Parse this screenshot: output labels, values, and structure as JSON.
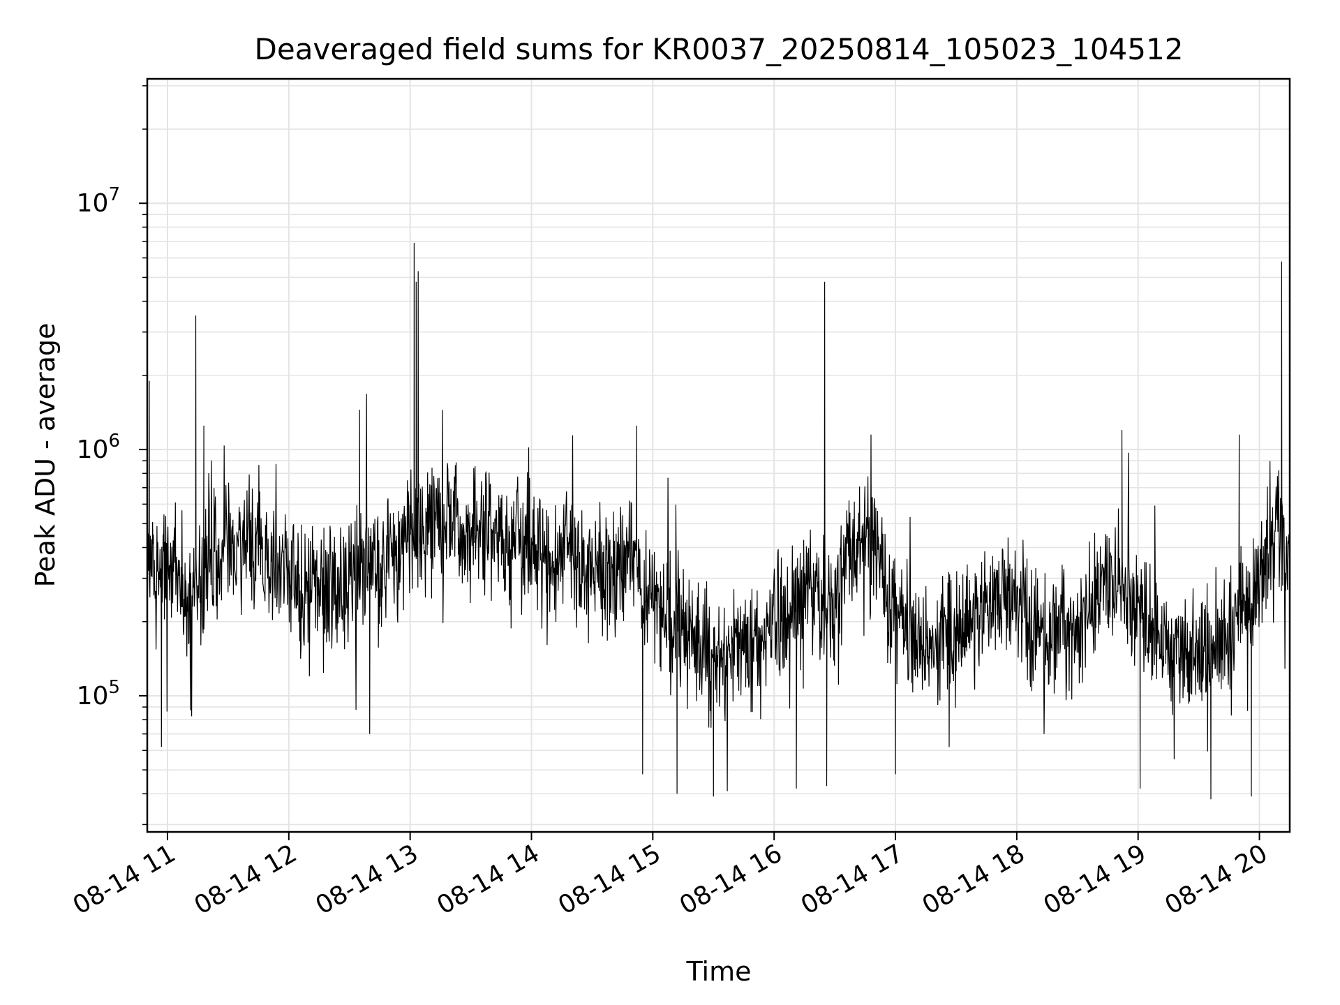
{
  "chart_data": {
    "type": "line",
    "title": "Deaveraged field sums for KR0037_20250814_105023_104512",
    "xlabel": "Time",
    "ylabel": "Peak ADU - average",
    "yscale": "log",
    "ylim": [
      28000,
      32000000
    ],
    "xlim": [
      "2025-08-14 10:50",
      "2025-08-14 20:15"
    ],
    "x_ticks": [
      "08-14 11",
      "08-14 12",
      "08-14 13",
      "08-14 14",
      "08-14 15",
      "08-14 16",
      "08-14 17",
      "08-14 18",
      "08-14 19",
      "08-14 20"
    ],
    "y_ticks": [
      {
        "base": "10",
        "exp": "5",
        "value": 100000
      },
      {
        "base": "10",
        "exp": "6",
        "value": 1000000
      },
      {
        "base": "10",
        "exp": "7",
        "value": 10000000
      }
    ],
    "grid": true,
    "legend": "none",
    "line_color": "#000000",
    "series": [
      {
        "x": [
          "2025-08-14 10:50",
          "2025-08-14 11:00",
          "2025-08-14 11:10",
          "2025-08-14 11:20",
          "2025-08-14 11:30",
          "2025-08-14 11:40",
          "2025-08-14 11:50",
          "2025-08-14 12:00",
          "2025-08-14 12:10",
          "2025-08-14 12:20",
          "2025-08-14 12:30",
          "2025-08-14 12:40",
          "2025-08-14 12:50",
          "2025-08-14 13:00",
          "2025-08-14 13:10",
          "2025-08-14 13:20",
          "2025-08-14 13:30",
          "2025-08-14 13:40",
          "2025-08-14 13:50",
          "2025-08-14 14:00",
          "2025-08-14 14:10",
          "2025-08-14 14:20",
          "2025-08-14 14:30",
          "2025-08-14 14:40",
          "2025-08-14 14:50",
          "2025-08-14 15:00",
          "2025-08-14 15:10",
          "2025-08-14 15:20",
          "2025-08-14 15:30",
          "2025-08-14 15:40",
          "2025-08-14 15:50",
          "2025-08-14 16:00",
          "2025-08-14 16:10",
          "2025-08-14 16:20",
          "2025-08-14 16:30",
          "2025-08-14 16:40",
          "2025-08-14 16:50",
          "2025-08-14 17:00",
          "2025-08-14 17:10",
          "2025-08-14 17:20",
          "2025-08-14 17:30",
          "2025-08-14 17:40",
          "2025-08-14 17:50",
          "2025-08-14 18:00",
          "2025-08-14 18:10",
          "2025-08-14 18:20",
          "2025-08-14 18:30",
          "2025-08-14 18:40",
          "2025-08-14 18:50",
          "2025-08-14 19:00",
          "2025-08-14 19:10",
          "2025-08-14 19:20",
          "2025-08-14 19:30",
          "2025-08-14 19:40",
          "2025-08-14 19:50",
          "2025-08-14 20:00",
          "2025-08-14 20:10",
          "2025-08-14 20:15"
        ],
        "y": [
          350000,
          300000,
          250000,
          320000,
          380000,
          400000,
          350000,
          330000,
          250000,
          280000,
          300000,
          330000,
          380000,
          430000,
          480000,
          500000,
          420000,
          400000,
          420000,
          380000,
          350000,
          370000,
          300000,
          330000,
          360000,
          240000,
          200000,
          160000,
          140000,
          150000,
          160000,
          200000,
          230000,
          250000,
          240000,
          380000,
          450000,
          200000,
          170000,
          160000,
          180000,
          220000,
          250000,
          230000,
          200000,
          170000,
          200000,
          260000,
          280000,
          220000,
          170000,
          150000,
          140000,
          170000,
          220000,
          300000,
          450000,
          400000
        ]
      }
    ],
    "spikes": [
      {
        "x": "2025-08-14 10:51",
        "y": 1900000
      },
      {
        "x": "2025-08-14 11:14",
        "y": 3500000
      },
      {
        "x": "2025-08-14 11:18",
        "y": 1250000
      },
      {
        "x": "2025-08-14 12:35",
        "y": 1450000
      },
      {
        "x": "2025-08-14 13:02",
        "y": 6900000
      },
      {
        "x": "2025-08-14 13:03",
        "y": 4800000
      },
      {
        "x": "2025-08-14 13:04",
        "y": 5300000
      },
      {
        "x": "2025-08-14 14:52",
        "y": 1250000
      },
      {
        "x": "2025-08-14 16:25",
        "y": 4800000
      },
      {
        "x": "2025-08-14 18:52",
        "y": 1200000
      },
      {
        "x": "2025-08-14 19:50",
        "y": 1150000
      },
      {
        "x": "2025-08-14 20:11",
        "y": 5800000
      }
    ],
    "dips": [
      {
        "x": "2025-08-14 10:57",
        "y": 62000
      },
      {
        "x": "2025-08-14 12:40",
        "y": 70000
      },
      {
        "x": "2025-08-14 14:55",
        "y": 48000
      },
      {
        "x": "2025-08-14 15:12",
        "y": 40000
      },
      {
        "x": "2025-08-14 15:30",
        "y": 39000
      },
      {
        "x": "2025-08-14 16:11",
        "y": 42000
      },
      {
        "x": "2025-08-14 16:26",
        "y": 43000
      },
      {
        "x": "2025-08-14 17:00",
        "y": 48000
      },
      {
        "x": "2025-08-14 19:01",
        "y": 42000
      },
      {
        "x": "2025-08-14 19:36",
        "y": 38000
      },
      {
        "x": "2025-08-14 19:56",
        "y": 39000
      }
    ]
  }
}
